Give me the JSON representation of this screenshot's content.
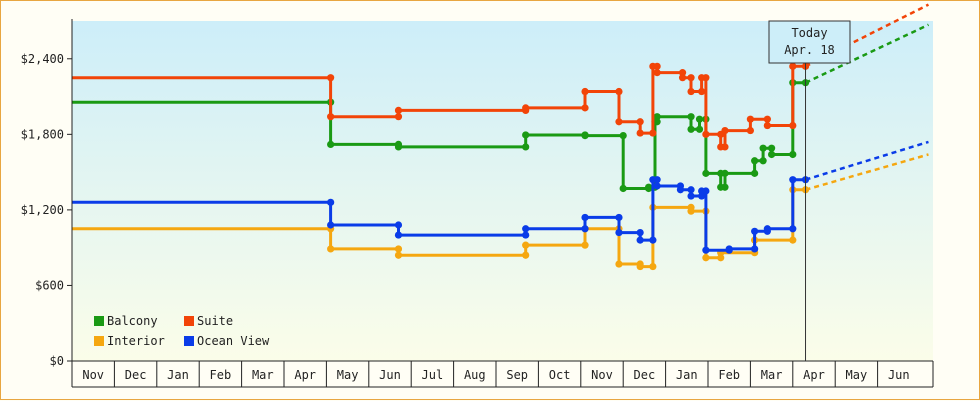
{
  "chart_data": {
    "type": "line",
    "title": "",
    "xlabel": "",
    "ylabel": "",
    "ylim": [
      0,
      2700
    ],
    "y_ticks": [
      "$0",
      "$600",
      "$1,200",
      "$1,800",
      "$2,400"
    ],
    "y_tick_values": [
      0,
      600,
      1200,
      1800,
      2400
    ],
    "x_months": [
      "Nov",
      "Dec",
      "Jan",
      "Feb",
      "Mar",
      "Apr",
      "May",
      "Jun",
      "Jul",
      "Aug",
      "Sep",
      "Oct",
      "Nov",
      "Dec",
      "Jan",
      "Feb",
      "Mar",
      "Apr",
      "May",
      "Jun"
    ],
    "today_marker": {
      "line1": "Today",
      "line2": "Apr. 18",
      "x": 17.3
    },
    "grid": false,
    "background": "light-blue-gradient",
    "legend": {
      "placement": "bottom-left"
    },
    "series": [
      {
        "name": "Balcony",
        "color": "#1a9a14",
        "points": [
          [
            0,
            2055
          ],
          [
            6.1,
            2055
          ],
          [
            6.1,
            1720
          ],
          [
            7.7,
            1720
          ],
          [
            7.7,
            1700
          ],
          [
            10.7,
            1700
          ],
          [
            10.7,
            1795
          ],
          [
            12.1,
            1795
          ],
          [
            12.1,
            1790
          ],
          [
            13.0,
            1790
          ],
          [
            13.0,
            1370
          ],
          [
            13.6,
            1370
          ],
          [
            13.6,
            1380
          ],
          [
            13.75,
            1380
          ],
          [
            13.75,
            1900
          ],
          [
            13.8,
            1900
          ],
          [
            13.8,
            1940
          ],
          [
            14.6,
            1940
          ],
          [
            14.6,
            1840
          ],
          [
            14.8,
            1840
          ],
          [
            14.8,
            1920
          ],
          [
            14.95,
            1920
          ],
          [
            14.95,
            1490
          ],
          [
            15.3,
            1490
          ],
          [
            15.3,
            1380
          ],
          [
            15.4,
            1380
          ],
          [
            15.4,
            1490
          ],
          [
            16.1,
            1490
          ],
          [
            16.1,
            1590
          ],
          [
            16.3,
            1590
          ],
          [
            16.3,
            1690
          ],
          [
            16.5,
            1690
          ],
          [
            16.5,
            1640
          ],
          [
            17.0,
            1640
          ],
          [
            17.0,
            2210
          ],
          [
            17.3,
            2210
          ]
        ],
        "forecast": [
          [
            17.3,
            2210
          ],
          [
            20.2,
            2670
          ]
        ]
      },
      {
        "name": "Suite",
        "color": "#f24408",
        "points": [
          [
            0,
            2250
          ],
          [
            6.1,
            2250
          ],
          [
            6.1,
            1940
          ],
          [
            7.7,
            1940
          ],
          [
            7.7,
            1990
          ],
          [
            10.7,
            1990
          ],
          [
            10.7,
            2010
          ],
          [
            12.1,
            2010
          ],
          [
            12.1,
            2140
          ],
          [
            12.9,
            2140
          ],
          [
            12.9,
            1900
          ],
          [
            13.4,
            1900
          ],
          [
            13.4,
            1810
          ],
          [
            13.7,
            1810
          ],
          [
            13.7,
            2340
          ],
          [
            13.8,
            2340
          ],
          [
            13.8,
            2290
          ],
          [
            14.4,
            2290
          ],
          [
            14.4,
            2250
          ],
          [
            14.6,
            2250
          ],
          [
            14.6,
            2140
          ],
          [
            14.85,
            2140
          ],
          [
            14.85,
            2250
          ],
          [
            14.95,
            2250
          ],
          [
            14.95,
            1800
          ],
          [
            15.3,
            1800
          ],
          [
            15.3,
            1700
          ],
          [
            15.4,
            1700
          ],
          [
            15.4,
            1830
          ],
          [
            16.0,
            1830
          ],
          [
            16.0,
            1920
          ],
          [
            16.4,
            1920
          ],
          [
            16.4,
            1870
          ],
          [
            17.0,
            1870
          ],
          [
            17.0,
            2340
          ],
          [
            17.3,
            2340
          ]
        ],
        "forecast": [
          [
            17.3,
            2340
          ],
          [
            20.2,
            2830
          ]
        ]
      },
      {
        "name": "Interior",
        "color": "#f5a710",
        "points": [
          [
            0,
            1050
          ],
          [
            6.1,
            1050
          ],
          [
            6.1,
            890
          ],
          [
            7.7,
            890
          ],
          [
            7.7,
            840
          ],
          [
            10.7,
            840
          ],
          [
            10.7,
            920
          ],
          [
            12.1,
            920
          ],
          [
            12.1,
            1050
          ],
          [
            12.9,
            1050
          ],
          [
            12.9,
            770
          ],
          [
            13.4,
            770
          ],
          [
            13.4,
            750
          ],
          [
            13.7,
            750
          ],
          [
            13.7,
            1220
          ],
          [
            14.6,
            1220
          ],
          [
            14.6,
            1190
          ],
          [
            14.95,
            1190
          ],
          [
            14.95,
            820
          ],
          [
            15.3,
            820
          ],
          [
            15.3,
            860
          ],
          [
            16.1,
            860
          ],
          [
            16.1,
            960
          ],
          [
            17.0,
            960
          ],
          [
            17.0,
            1360
          ],
          [
            17.3,
            1360
          ]
        ],
        "forecast": [
          [
            17.3,
            1360
          ],
          [
            20.2,
            1640
          ]
        ]
      },
      {
        "name": "Ocean View",
        "color": "#0a3ce8",
        "points": [
          [
            0,
            1260
          ],
          [
            6.1,
            1260
          ],
          [
            6.1,
            1080
          ],
          [
            7.7,
            1080
          ],
          [
            7.7,
            1000
          ],
          [
            10.7,
            1000
          ],
          [
            10.7,
            1050
          ],
          [
            12.1,
            1050
          ],
          [
            12.1,
            1140
          ],
          [
            12.9,
            1140
          ],
          [
            12.9,
            1020
          ],
          [
            13.4,
            1020
          ],
          [
            13.4,
            960
          ],
          [
            13.7,
            960
          ],
          [
            13.7,
            1440
          ],
          [
            13.8,
            1440
          ],
          [
            13.8,
            1390
          ],
          [
            14.35,
            1390
          ],
          [
            14.35,
            1360
          ],
          [
            14.6,
            1360
          ],
          [
            14.6,
            1310
          ],
          [
            14.85,
            1310
          ],
          [
            14.85,
            1350
          ],
          [
            14.95,
            1350
          ],
          [
            14.95,
            880
          ],
          [
            15.3,
            880
          ],
          [
            15.3,
            880
          ],
          [
            15.5,
            880
          ],
          [
            15.5,
            890
          ],
          [
            16.1,
            890
          ],
          [
            16.1,
            1030
          ],
          [
            16.4,
            1030
          ],
          [
            16.4,
            1050
          ],
          [
            17.0,
            1050
          ],
          [
            17.0,
            1440
          ],
          [
            17.3,
            1440
          ]
        ],
        "forecast": [
          [
            17.3,
            1440
          ],
          [
            20.2,
            1740
          ]
        ]
      }
    ]
  }
}
